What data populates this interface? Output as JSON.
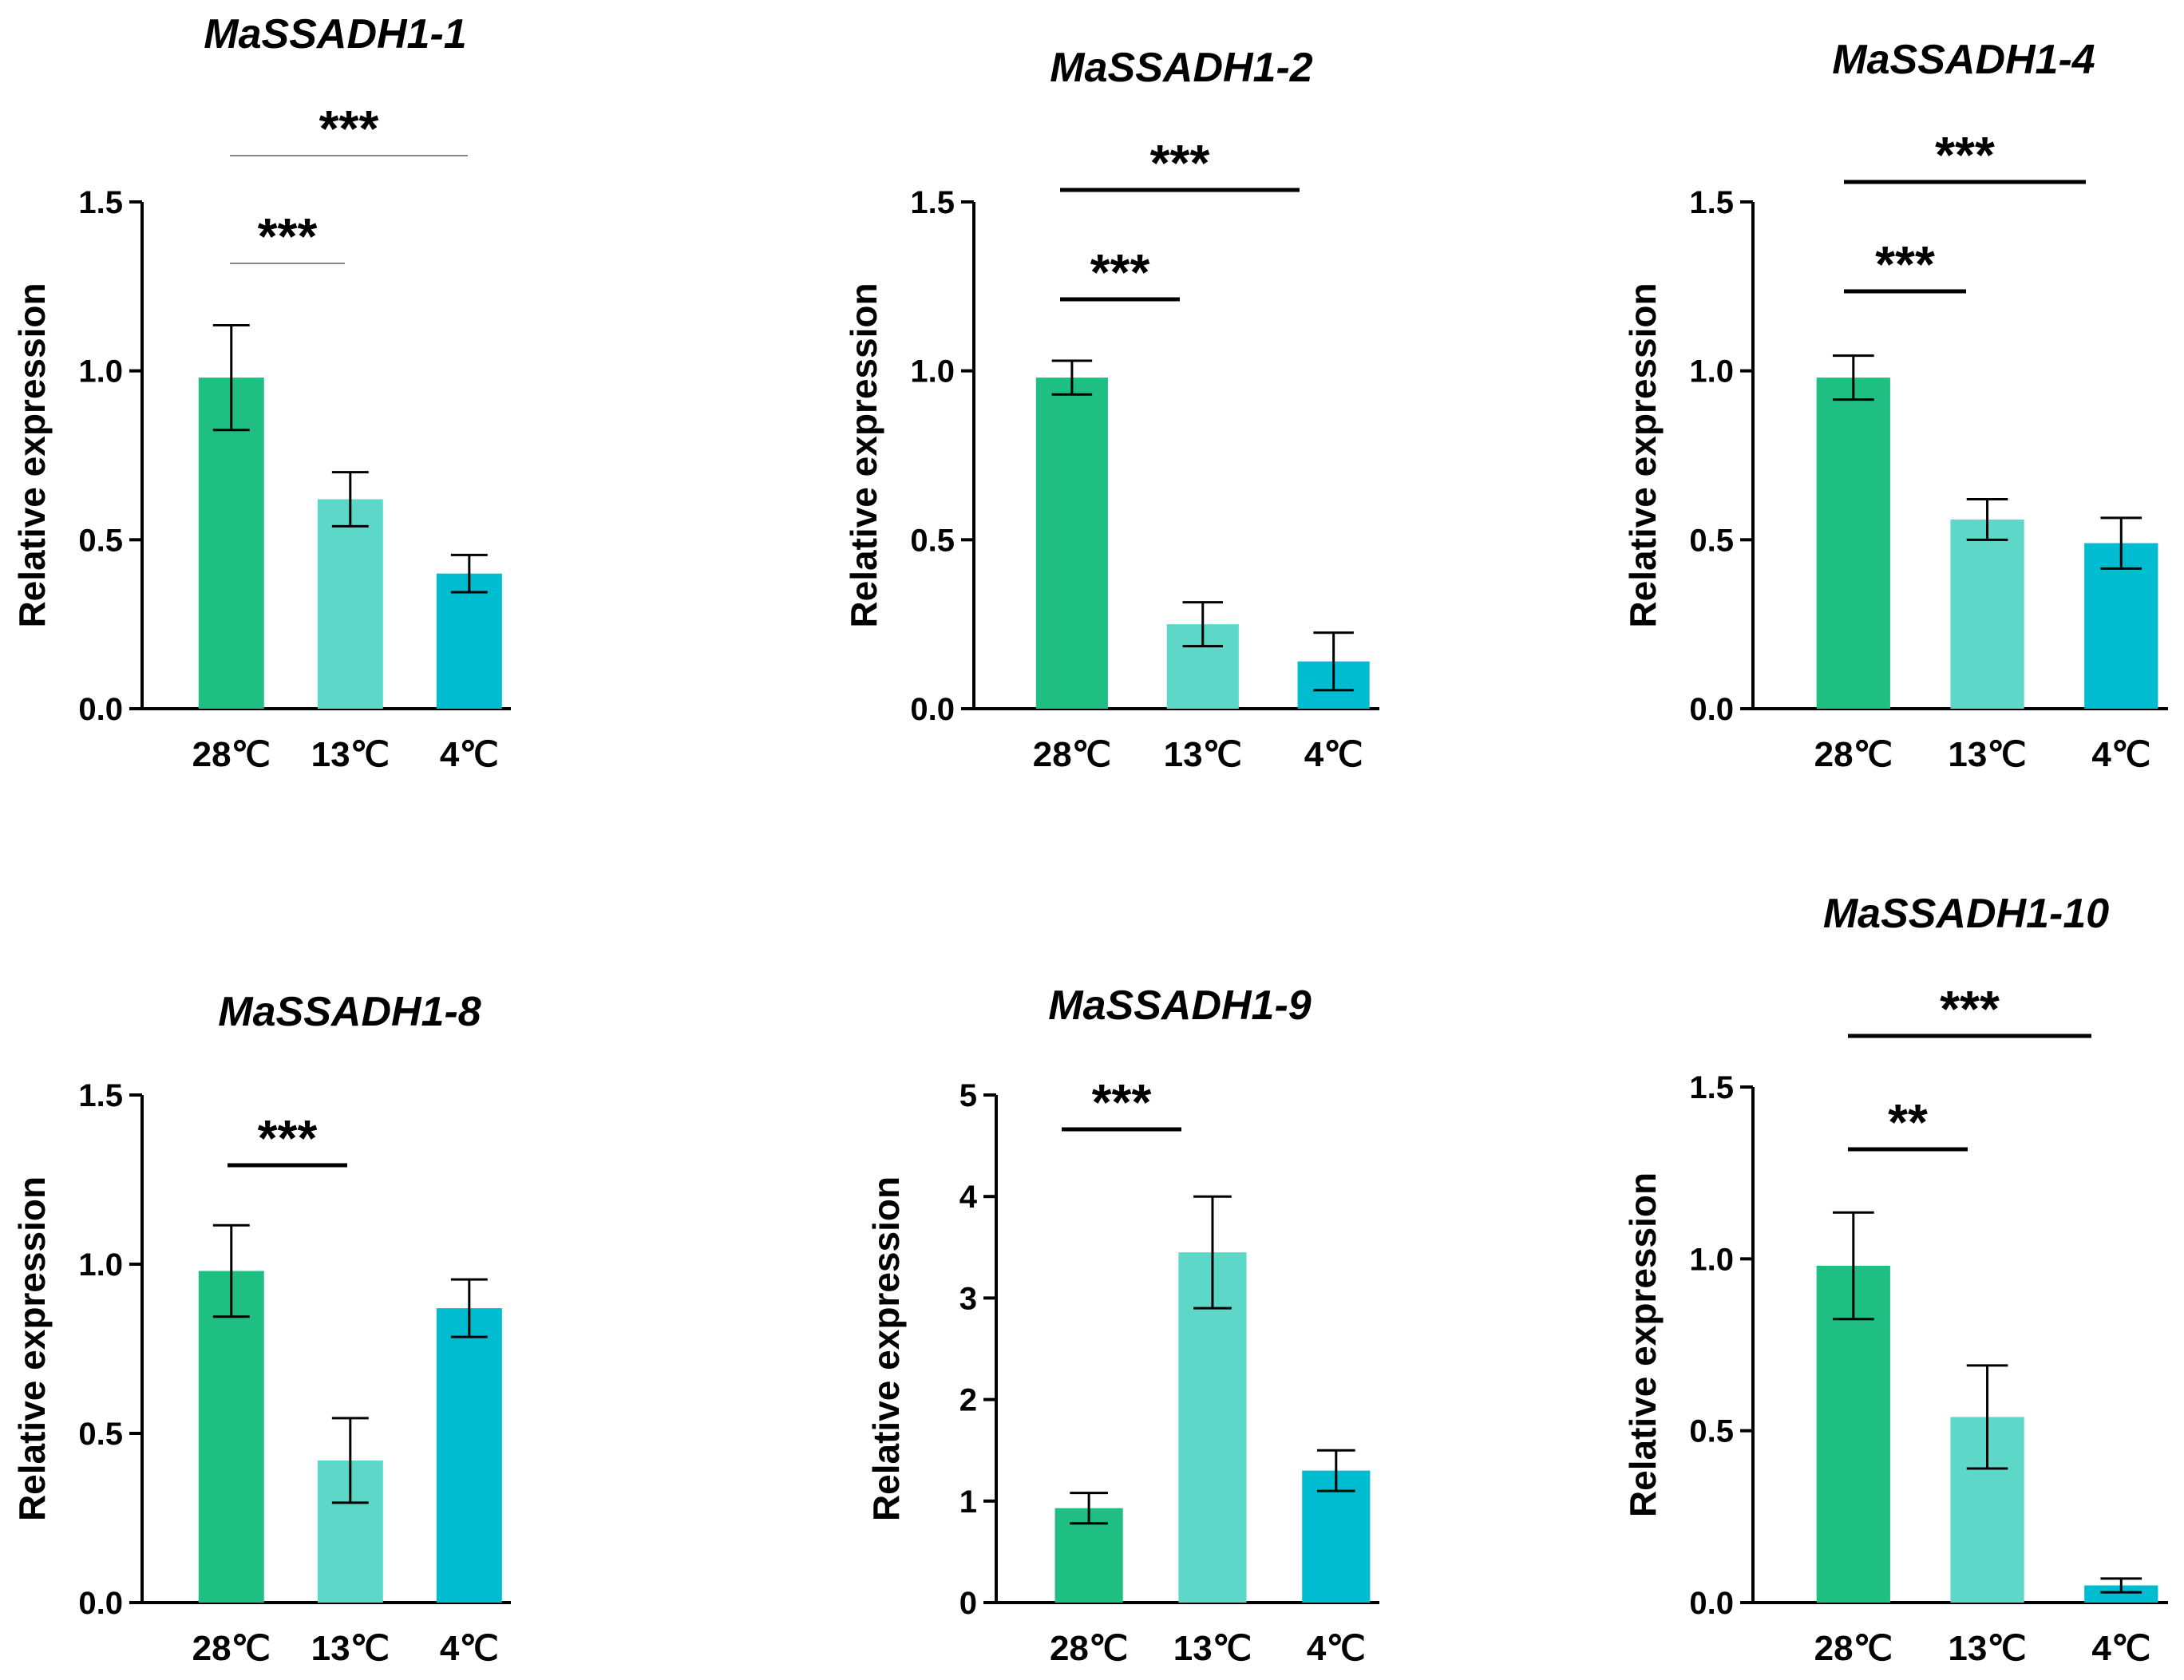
{
  "figure": {
    "colors": {
      "28C": "#1fbf84",
      "13C": "#5dd8c8",
      "4C": "#00bcd0",
      "axis": "#000000"
    }
  },
  "chart_data": [
    {
      "type": "bar",
      "title": "MaSSADH1-1",
      "xlabel": "",
      "ylabel": "Relative expression",
      "ylim": [
        0,
        1.5
      ],
      "yticks": [
        "0.0",
        "0.5",
        "1.0",
        "1.5"
      ],
      "categories": [
        "28℃",
        "13℃",
        "4℃"
      ],
      "values": [
        0.98,
        0.62,
        0.4
      ],
      "errors": [
        0.155,
        0.08,
        0.055
      ],
      "significance": [
        {
          "from": 0,
          "to": 1,
          "label": "***"
        },
        {
          "from": 0,
          "to": 2,
          "label": "***"
        }
      ]
    },
    {
      "type": "bar",
      "title": "MaSSADH1-2",
      "xlabel": "",
      "ylabel": "Relative expression",
      "ylim": [
        0,
        1.5
      ],
      "yticks": [
        "0.0",
        "0.5",
        "1.0",
        "1.5"
      ],
      "categories": [
        "28℃",
        "13℃",
        "4℃"
      ],
      "values": [
        0.98,
        0.25,
        0.14
      ],
      "errors": [
        0.05,
        0.065,
        0.085
      ],
      "significance": [
        {
          "from": 0,
          "to": 1,
          "label": "***"
        },
        {
          "from": 0,
          "to": 2,
          "label": "***"
        }
      ]
    },
    {
      "type": "bar",
      "title": "MaSSADH1-4",
      "xlabel": "",
      "ylabel": "Relative expression",
      "ylim": [
        0,
        1.5
      ],
      "yticks": [
        "0.0",
        "0.5",
        "1.0",
        "1.5"
      ],
      "categories": [
        "28℃",
        "13℃",
        "4℃"
      ],
      "values": [
        0.98,
        0.56,
        0.49
      ],
      "errors": [
        0.065,
        0.06,
        0.075
      ],
      "significance": [
        {
          "from": 0,
          "to": 1,
          "label": "***"
        },
        {
          "from": 0,
          "to": 2,
          "label": "***"
        }
      ]
    },
    {
      "type": "bar",
      "title": "MaSSADH1-8",
      "xlabel": "",
      "ylabel": "Relative expression",
      "ylim": [
        0,
        1.5
      ],
      "yticks": [
        "0.0",
        "0.5",
        "1.0",
        "1.5"
      ],
      "categories": [
        "28℃",
        "13℃",
        "4℃"
      ],
      "values": [
        0.98,
        0.42,
        0.87
      ],
      "errors": [
        0.135,
        0.125,
        0.085
      ],
      "significance": [
        {
          "from": 0,
          "to": 1,
          "label": "***"
        }
      ]
    },
    {
      "type": "bar",
      "title": "MaSSADH1-9",
      "xlabel": "",
      "ylabel": "Relative expression",
      "ylim": [
        0,
        5
      ],
      "yticks": [
        "0",
        "1",
        "2",
        "3",
        "4",
        "5"
      ],
      "categories": [
        "28℃",
        "13℃",
        "4℃"
      ],
      "values": [
        0.93,
        3.45,
        1.3
      ],
      "errors": [
        0.15,
        0.55,
        0.2
      ],
      "significance": [
        {
          "from": 0,
          "to": 1,
          "label": "***"
        }
      ]
    },
    {
      "type": "bar",
      "title": "MaSSADH1-10",
      "xlabel": "",
      "ylabel": "Relative expression",
      "ylim": [
        0,
        1.5
      ],
      "yticks": [
        "0.0",
        "0.5",
        "1.0",
        "1.5"
      ],
      "categories": [
        "28℃",
        "13℃",
        "4℃"
      ],
      "values": [
        0.98,
        0.54,
        0.05
      ],
      "errors": [
        0.155,
        0.15,
        0.02
      ],
      "significance": [
        {
          "from": 0,
          "to": 1,
          "label": "**"
        },
        {
          "from": 0,
          "to": 2,
          "label": "***"
        }
      ]
    }
  ]
}
